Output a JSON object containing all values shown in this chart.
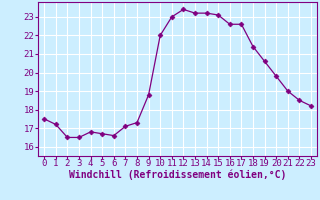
{
  "hours": [
    0,
    1,
    2,
    3,
    4,
    5,
    6,
    7,
    8,
    9,
    10,
    11,
    12,
    13,
    14,
    15,
    16,
    17,
    18,
    19,
    20,
    21,
    22,
    23
  ],
  "values": [
    17.5,
    17.2,
    16.5,
    16.5,
    16.8,
    16.7,
    16.6,
    17.1,
    17.3,
    18.8,
    22.0,
    23.0,
    23.4,
    23.2,
    23.2,
    23.1,
    22.6,
    22.6,
    21.4,
    20.6,
    19.8,
    19.0,
    18.5,
    18.2
  ],
  "line_color": "#800080",
  "marker": "D",
  "marker_size": 2.5,
  "background_color": "#cceeff",
  "grid_color": "#ffffff",
  "xlabel": "Windchill (Refroidissement éolien,°C)",
  "ylabel": "",
  "xlim": [
    -0.5,
    23.5
  ],
  "ylim": [
    15.5,
    23.8
  ],
  "yticks": [
    16,
    17,
    18,
    19,
    20,
    21,
    22,
    23
  ],
  "xticks": [
    0,
    1,
    2,
    3,
    4,
    5,
    6,
    7,
    8,
    9,
    10,
    11,
    12,
    13,
    14,
    15,
    16,
    17,
    18,
    19,
    20,
    21,
    22,
    23
  ],
  "tick_color": "#800080",
  "label_color": "#800080",
  "tick_fontsize": 6.5,
  "xlabel_fontsize": 7.0,
  "spine_color": "#800080"
}
